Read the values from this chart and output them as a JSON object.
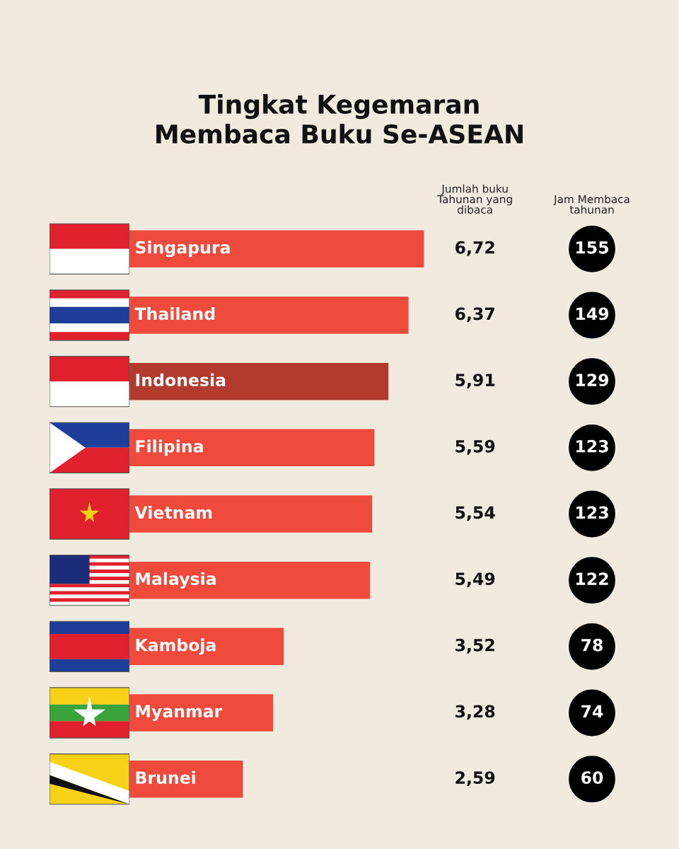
{
  "chart_data": [
    {
      "type": "bar",
      "orientation": "horizontal",
      "title": "Tingkat Kegemaran\nMembaca Buku Se-ASEAN",
      "categories": [
        "Singapura",
        "Thailand",
        "Indonesia",
        "Filipina",
        "Vietnam",
        "Malaysia",
        "Kamboja",
        "Myanmar",
        "Brunei"
      ],
      "values": [
        6.72,
        6.37,
        5.91,
        5.59,
        5.54,
        5.49,
        3.52,
        3.28,
        2.59
      ],
      "value_labels": [
        "6,72",
        "6,37",
        "5,91",
        "5,59",
        "5,54",
        "5,49",
        "3,52",
        "3,28",
        "2,59"
      ],
      "colors": [
        "#ef4a3b",
        "#ef4a3b",
        "#b23a2e",
        "#ef4a3b",
        "#ef4a3b",
        "#ef4a3b",
        "#ef4a3b",
        "#ef4a3b",
        "#ef4a3b"
      ],
      "annotations": [
        "Jumlah buku\nTahunan yang\ndibaca"
      ]
    },
    {
      "type": "other",
      "title": "Jam Membaca\ntahunan",
      "value_labels": [
        "155",
        "149",
        "129",
        "123",
        "123",
        "122",
        "78",
        "74",
        "60"
      ],
      "categories": [
        null,
        null,
        null,
        null,
        null,
        null,
        null,
        null,
        null
      ],
      "values": [
        155,
        149,
        129,
        123,
        123,
        122,
        78,
        74,
        60
      ],
      "color": "#000000"
    }
  ]
}
